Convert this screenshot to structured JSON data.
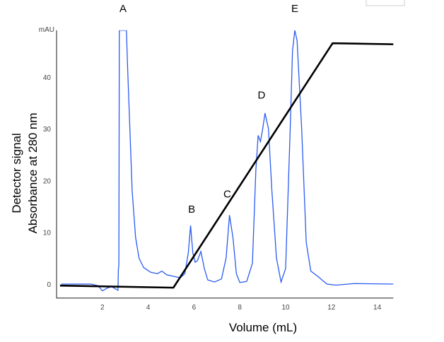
{
  "chart_data": {
    "type": "line",
    "title": "",
    "xlabel": "Volume (mL)",
    "ylabel": [
      "Detector signal",
      "Absorbance at 280 nm"
    ],
    "y_unit": "mAU",
    "xlim": [
      0,
      14.7
    ],
    "ylim": [
      -2.7,
      49
    ],
    "x_ticks": [
      2,
      4,
      6,
      8,
      10,
      12,
      14
    ],
    "y_ticks": [
      0,
      10,
      20,
      30,
      40
    ],
    "grid": false,
    "colors": {
      "trace": "#2a5bf0",
      "gradient": "#000000"
    },
    "series": [
      {
        "kind": "absorbance trace",
        "x": [
          0.2,
          1.5,
          1.8,
          2.0,
          2.2,
          2.4,
          2.6,
          2.68,
          2.7,
          2.72,
          2.74,
          2.78,
          3.05,
          3.1,
          3.2,
          3.3,
          3.45,
          3.6,
          3.8,
          4.1,
          4.4,
          4.6,
          4.8,
          5.1,
          5.4,
          5.6,
          5.75,
          5.85,
          5.95,
          6.05,
          6.15,
          6.3,
          6.45,
          6.6,
          6.9,
          7.2,
          7.4,
          7.55,
          7.7,
          7.85,
          8.0,
          8.3,
          8.55,
          8.7,
          8.8,
          8.9,
          9.0,
          9.1,
          9.25,
          9.4,
          9.6,
          9.8,
          10.0,
          10.2,
          10.3,
          10.4,
          10.5,
          10.7,
          10.9,
          11.1,
          11.4,
          11.8,
          12.2,
          13.0,
          14.7
        ],
        "y": [
          0,
          0,
          -0.3,
          -1.3,
          -0.8,
          -0.5,
          -1.0,
          -1.2,
          3,
          3.5,
          49,
          49,
          49,
          42,
          30,
          18,
          9,
          5,
          3.2,
          2.3,
          2.0,
          2.5,
          1.8,
          1.5,
          1.2,
          2,
          6,
          11.3,
          6,
          4.2,
          4.5,
          6.3,
          3,
          0.8,
          0.4,
          1.0,
          5,
          13.3,
          9,
          2,
          0.3,
          0.5,
          4,
          22,
          28.7,
          27.5,
          30,
          33,
          30,
          18,
          5,
          0.4,
          3,
          30,
          45,
          49,
          47,
          30,
          8,
          2.5,
          1.5,
          0,
          -0.2,
          0.1,
          0
        ]
      },
      {
        "kind": "gradient",
        "x": [
          0.15,
          5.1,
          12.05,
          14.7
        ],
        "y": [
          -0.3,
          -0.7,
          46.5,
          46.3
        ]
      }
    ],
    "annotations": [
      {
        "text": "A",
        "x": 2.9,
        "y": 52.5
      },
      {
        "text": "B",
        "x": 5.9,
        "y": 13.8
      },
      {
        "text": "C",
        "x": 7.45,
        "y": 16.7
      },
      {
        "text": "D",
        "x": 8.95,
        "y": 35.8
      },
      {
        "text": "E",
        "x": 10.4,
        "y": 52.5
      }
    ]
  }
}
